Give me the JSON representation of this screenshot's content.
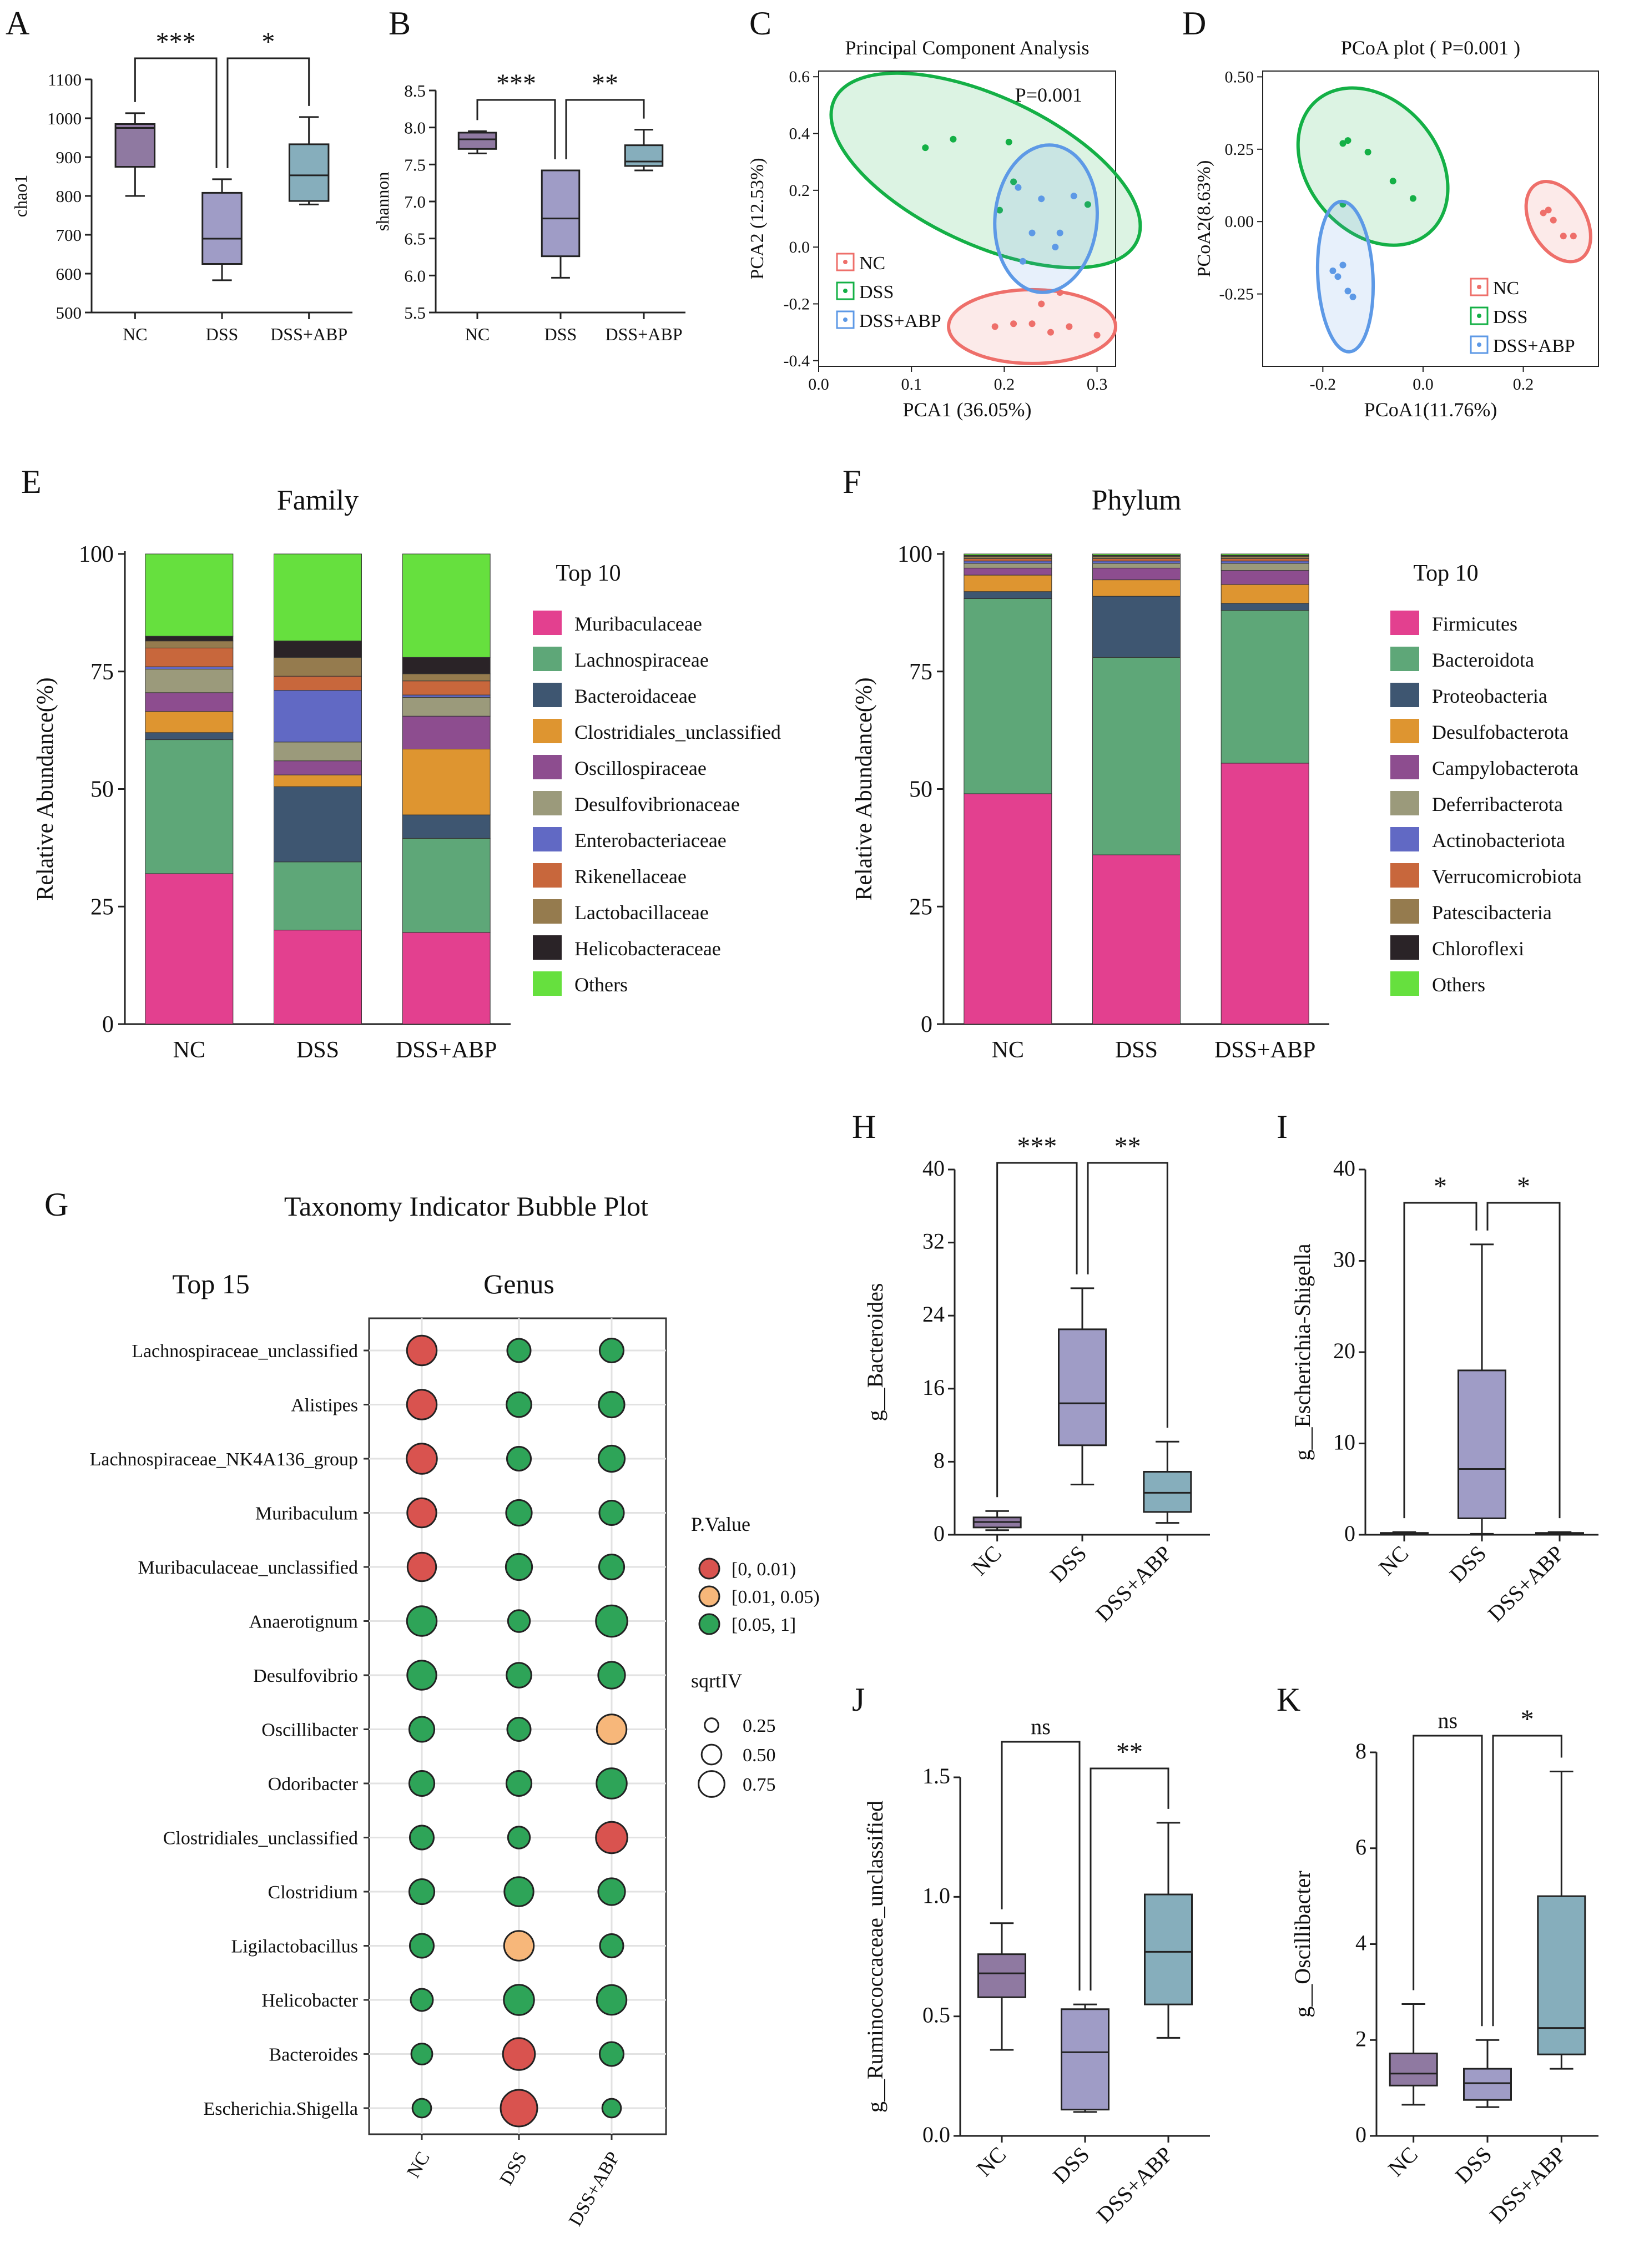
{
  "chart_data": [
    {
      "panel": "A",
      "type": "box",
      "ylabel": "chao1",
      "ylim": [
        500,
        1100
      ],
      "yticks": [
        500,
        600,
        700,
        800,
        900,
        1000,
        1100
      ],
      "categories": [
        "NC",
        "DSS",
        "DSS+ABP"
      ],
      "boxes": [
        {
          "min": 800,
          "q1": 875,
          "median": 975,
          "q3": 985,
          "max": 1013
        },
        {
          "min": 583,
          "q1": 625,
          "median": 690,
          "q3": 808,
          "max": 843
        },
        {
          "min": 778,
          "q1": 787,
          "median": 853,
          "q3": 933,
          "max": 1003
        }
      ],
      "colors": [
        "#8f79a1",
        "#9f9cc6",
        "#86aebc"
      ],
      "significance": [
        {
          "from": 0,
          "to": 1,
          "label": "***"
        },
        {
          "from": 1,
          "to": 2,
          "label": "*"
        }
      ]
    },
    {
      "panel": "B",
      "type": "box",
      "ylabel": "shannon",
      "ylim": [
        5.5,
        8.5
      ],
      "yticks": [
        5.5,
        6.0,
        6.5,
        7.0,
        7.5,
        8.0,
        8.5
      ],
      "categories": [
        "NC",
        "DSS",
        "DSS+ABP"
      ],
      "boxes": [
        {
          "min": 7.65,
          "q1": 7.71,
          "median": 7.84,
          "q3": 7.93,
          "max": 7.95
        },
        {
          "min": 5.97,
          "q1": 6.26,
          "median": 6.77,
          "q3": 7.42,
          "max": 7.42
        },
        {
          "min": 7.42,
          "q1": 7.48,
          "median": 7.54,
          "q3": 7.76,
          "max": 7.97
        }
      ],
      "colors": [
        "#8f79a1",
        "#9f9cc6",
        "#86aebc"
      ],
      "significance": [
        {
          "from": 0,
          "to": 1,
          "label": "***"
        },
        {
          "from": 1,
          "to": 2,
          "label": "**"
        }
      ]
    },
    {
      "panel": "C",
      "type": "scatter",
      "title": "Principal Component Analysis",
      "annotation": "P=0.001",
      "xlabel": "PCA1 (36.05%)",
      "ylabel": "PCA2 (12.53%)",
      "xlim": [
        0,
        0.32
      ],
      "ylim": [
        -0.42,
        0.62
      ],
      "xticks": [
        0.0,
        0.1,
        0.2,
        0.3
      ],
      "yticks": [
        -0.4,
        -0.2,
        0.0,
        0.2,
        0.4,
        0.6
      ],
      "series": [
        {
          "name": "NC",
          "color": "#ee6f6a",
          "points": [
            [
              0.19,
              -0.28
            ],
            [
              0.21,
              -0.27
            ],
            [
              0.23,
              -0.27
            ],
            [
              0.25,
              -0.3
            ],
            [
              0.27,
              -0.28
            ],
            [
              0.3,
              -0.31
            ],
            [
              0.26,
              -0.16
            ],
            [
              0.24,
              -0.2
            ]
          ],
          "ellipse": {
            "cx": 0.23,
            "cy": -0.28,
            "rx": 0.09,
            "ry": 0.13,
            "angle": 0
          }
        },
        {
          "name": "DSS",
          "color": "#14b046",
          "points": [
            [
              0.115,
              0.35
            ],
            [
              0.145,
              0.38
            ],
            [
              0.205,
              0.37
            ],
            [
              0.21,
              0.23
            ],
            [
              0.195,
              0.13
            ],
            [
              0.29,
              0.15
            ]
          ],
          "ellipse": {
            "cx": 0.18,
            "cy": 0.27,
            "rx": 0.18,
            "ry": 0.26,
            "angle": 25
          }
        },
        {
          "name": "DSS+ABP",
          "color": "#5d99e6",
          "points": [
            [
              0.215,
              0.21
            ],
            [
              0.24,
              0.17
            ],
            [
              0.275,
              0.18
            ],
            [
              0.26,
              0.05
            ],
            [
              0.23,
              0.05
            ],
            [
              0.22,
              -0.05
            ],
            [
              0.255,
              0.0
            ]
          ],
          "ellipse": {
            "cx": 0.245,
            "cy": 0.1,
            "rx": 0.055,
            "ry": 0.26,
            "angle": 5
          }
        }
      ]
    },
    {
      "panel": "D",
      "type": "scatter",
      "title": "PCoA plot ( P=0.001 )",
      "xlabel": "PCoA1(11.76%)",
      "ylabel": "PCoA2(8.63%)",
      "xlim": [
        -0.32,
        0.35
      ],
      "ylim": [
        -0.5,
        0.52
      ],
      "xticks": [
        -0.2,
        0.0,
        0.2
      ],
      "yticks": [
        -0.25,
        0.0,
        0.25,
        0.5
      ],
      "series": [
        {
          "name": "NC",
          "color": "#ee6f6a",
          "points": [
            [
              0.24,
              0.03
            ],
            [
              0.25,
              0.04
            ],
            [
              0.26,
              0.005
            ],
            [
              0.28,
              -0.05
            ],
            [
              0.3,
              -0.05
            ]
          ],
          "ellipse": {
            "cx": 0.27,
            "cy": 0.0,
            "rx": 0.055,
            "ry": 0.15,
            "angle": -30
          }
        },
        {
          "name": "DSS",
          "color": "#14b046",
          "points": [
            [
              -0.16,
              0.27
            ],
            [
              -0.15,
              0.28
            ],
            [
              -0.11,
              0.24
            ],
            [
              -0.06,
              0.14
            ],
            [
              -0.02,
              0.08
            ],
            [
              -0.16,
              0.06
            ]
          ],
          "ellipse": {
            "cx": -0.1,
            "cy": 0.19,
            "rx": 0.13,
            "ry": 0.3,
            "angle": -40
          }
        },
        {
          "name": "DSS+ABP",
          "color": "#5d99e6",
          "points": [
            [
              -0.18,
              -0.17
            ],
            [
              -0.16,
              -0.15
            ],
            [
              -0.17,
              -0.19
            ],
            [
              -0.15,
              -0.24
            ],
            [
              -0.14,
              -0.26
            ]
          ],
          "ellipse": {
            "cx": -0.155,
            "cy": -0.19,
            "rx": 0.055,
            "ry": 0.26,
            "angle": -3
          }
        }
      ]
    },
    {
      "panel": "E",
      "type": "stacked_bar",
      "title": "Family",
      "legend_title": "Top 10",
      "ylabel": "Relative Abundance(%)",
      "ylim": [
        0,
        100
      ],
      "yticks": [
        0,
        25,
        50,
        75,
        100
      ],
      "categories": [
        "NC",
        "DSS",
        "DSS+ABP"
      ],
      "series": [
        {
          "name": "Muribaculaceae",
          "color": "#e3408f",
          "values": [
            32,
            20,
            19.5
          ]
        },
        {
          "name": "Lachnospiraceae",
          "color": "#5ea778",
          "values": [
            28.5,
            14.5,
            20
          ]
        },
        {
          "name": "Bacteroidaceae",
          "color": "#3e5671",
          "values": [
            1.5,
            16,
            5
          ]
        },
        {
          "name": "Clostridiales_unclassified",
          "color": "#de9530",
          "values": [
            4.5,
            2.5,
            14
          ]
        },
        {
          "name": "Oscillospiraceae",
          "color": "#8d4d8f",
          "values": [
            4,
            3,
            7
          ]
        },
        {
          "name": "Desulfovibrionaceae",
          "color": "#9b9a7b",
          "values": [
            5,
            4,
            4
          ]
        },
        {
          "name": "Enterobacteriaceae",
          "color": "#6169c4",
          "values": [
            0.5,
            11,
            0.5
          ]
        },
        {
          "name": "Rikenellaceae",
          "color": "#c8673c",
          "values": [
            4,
            3,
            3
          ]
        },
        {
          "name": "Lactobacillaceae",
          "color": "#957b4e",
          "values": [
            1.5,
            4,
            1.5
          ]
        },
        {
          "name": "Helicobacteraceae",
          "color": "#2a2327",
          "values": [
            1,
            3.5,
            3.5
          ]
        },
        {
          "name": "Others",
          "color": "#66e03e",
          "values": [
            17.5,
            18.5,
            22
          ]
        }
      ]
    },
    {
      "panel": "F",
      "type": "stacked_bar",
      "title": "Phylum",
      "legend_title": "Top 10",
      "ylabel": "Relative Abundance(%)",
      "ylim": [
        0,
        100
      ],
      "yticks": [
        0,
        25,
        50,
        75,
        100
      ],
      "categories": [
        "NC",
        "DSS",
        "DSS+ABP"
      ],
      "series": [
        {
          "name": "Firmicutes",
          "color": "#e3408f",
          "values": [
            49,
            36,
            55.5
          ]
        },
        {
          "name": "Bacteroidota",
          "color": "#5ea778",
          "values": [
            41.5,
            42,
            32.5
          ]
        },
        {
          "name": "Proteobacteria",
          "color": "#3e5671",
          "values": [
            1.5,
            13,
            1.5
          ]
        },
        {
          "name": "Desulfobacterota",
          "color": "#de9530",
          "values": [
            3.5,
            3.5,
            4
          ]
        },
        {
          "name": "Campylobacterota",
          "color": "#8d4d8f",
          "values": [
            1.5,
            2.5,
            3
          ]
        },
        {
          "name": "Deferribacterota",
          "color": "#9b9a7b",
          "values": [
            1,
            1,
            1.5
          ]
        },
        {
          "name": "Actinobacteriota",
          "color": "#6169c4",
          "values": [
            0.5,
            0.5,
            0.5
          ]
        },
        {
          "name": "Verrucomicrobiota",
          "color": "#c8673c",
          "values": [
            0.5,
            0.5,
            0.5
          ]
        },
        {
          "name": "Patescibacteria",
          "color": "#957b4e",
          "values": [
            0.5,
            0.5,
            0.5
          ]
        },
        {
          "name": "Chloroflexi",
          "color": "#2a2327",
          "values": [
            0.2,
            0.2,
            0.2
          ]
        },
        {
          "name": "Others",
          "color": "#66e03e",
          "values": [
            0.3,
            0.3,
            0.3
          ]
        }
      ]
    },
    {
      "panel": "G",
      "type": "bubble",
      "title": "Taxonomy Indicator Bubble Plot",
      "subtitle_left": "Top 15",
      "subtitle_right": "Genus",
      "columns": [
        "NC",
        "DSS",
        "DSS+ABP"
      ],
      "rows": [
        "Lachnospiraceae_unclassified",
        "Alistipes",
        "Lachnospiraceae_NK4A136_group",
        "Muribaculum",
        "Muribaculaceae_unclassified",
        "Anaerotignum",
        "Desulfovibrio",
        "Oscillibacter",
        "Odoribacter",
        "Clostridiales_unclassified",
        "Clostridium",
        "Ligilactobacillus",
        "Helicobacter",
        "Bacteroides",
        "Escherichia.Shigella"
      ],
      "pvalue_class": [
        [
          0,
          2,
          2
        ],
        [
          0,
          2,
          2
        ],
        [
          0,
          2,
          2
        ],
        [
          0,
          2,
          2
        ],
        [
          0,
          2,
          2
        ],
        [
          2,
          2,
          2
        ],
        [
          2,
          2,
          2
        ],
        [
          2,
          2,
          1
        ],
        [
          2,
          2,
          2
        ],
        [
          2,
          2,
          0
        ],
        [
          2,
          2,
          2
        ],
        [
          2,
          1,
          2
        ],
        [
          2,
          2,
          2
        ],
        [
          2,
          0,
          2
        ],
        [
          2,
          0,
          2
        ]
      ],
      "sqrtIV": [
        [
          0.72,
          0.5,
          0.52
        ],
        [
          0.72,
          0.55,
          0.58
        ],
        [
          0.74,
          0.52,
          0.6
        ],
        [
          0.7,
          0.58,
          0.54
        ],
        [
          0.68,
          0.6,
          0.56
        ],
        [
          0.72,
          0.45,
          0.78
        ],
        [
          0.7,
          0.55,
          0.62
        ],
        [
          0.56,
          0.5,
          0.72
        ],
        [
          0.56,
          0.56,
          0.74
        ],
        [
          0.52,
          0.45,
          0.78
        ],
        [
          0.56,
          0.7,
          0.62
        ],
        [
          0.52,
          0.72,
          0.5
        ],
        [
          0.46,
          0.74,
          0.72
        ],
        [
          0.42,
          0.8,
          0.52
        ],
        [
          0.34,
          0.96,
          0.34
        ]
      ],
      "legend": {
        "pvalue_title": "P.Value",
        "pvalue_labels": [
          "[0, 0.01)",
          "[0.01, 0.05)",
          "[0.05, 1]"
        ],
        "pvalue_colors": [
          "#d9534f",
          "#f7b77a",
          "#2ea458"
        ],
        "size_title": "sqrtIV",
        "size_labels": [
          "0.25",
          "0.50",
          "0.75"
        ],
        "size_values": [
          0.25,
          0.5,
          0.75
        ]
      }
    },
    {
      "panel": "H",
      "type": "box",
      "ylabel": "g__Bacteroides",
      "ylim": [
        0,
        40
      ],
      "yticks": [
        0,
        8,
        16,
        24,
        32,
        40
      ],
      "categories": [
        "NC",
        "DSS",
        "DSS+ABP"
      ],
      "boxes": [
        {
          "min": 0.5,
          "q1": 0.8,
          "median": 1.4,
          "q3": 1.9,
          "max": 2.6
        },
        {
          "min": 5.5,
          "q1": 9.8,
          "median": 14.4,
          "q3": 22.5,
          "max": 27
        },
        {
          "min": 1.3,
          "q1": 2.5,
          "median": 4.6,
          "q3": 6.9,
          "max": 10.2
        }
      ],
      "colors": [
        "#8f79a1",
        "#9f9cc6",
        "#86aebc"
      ],
      "significance": [
        {
          "from": 0,
          "to": 1,
          "label": "***"
        },
        {
          "from": 1,
          "to": 2,
          "label": "**"
        }
      ]
    },
    {
      "panel": "I",
      "type": "box",
      "ylabel": "g__Escherichia-Shigella",
      "ylim": [
        0,
        40
      ],
      "yticks": [
        0,
        10,
        20,
        30,
        40
      ],
      "categories": [
        "NC",
        "DSS",
        "DSS+ABP"
      ],
      "boxes": [
        {
          "min": 0,
          "q1": 0.05,
          "median": 0.1,
          "q3": 0.2,
          "max": 0.3
        },
        {
          "min": 0.1,
          "q1": 1.8,
          "median": 7.2,
          "q3": 18,
          "max": 31.8
        },
        {
          "min": 0,
          "q1": 0.05,
          "median": 0.1,
          "q3": 0.2,
          "max": 0.3
        }
      ],
      "colors": [
        "#8f79a1",
        "#9f9cc6",
        "#86aebc"
      ],
      "significance": [
        {
          "from": 0,
          "to": 1,
          "label": "*"
        },
        {
          "from": 1,
          "to": 2,
          "label": "*"
        }
      ]
    },
    {
      "panel": "J",
      "type": "box",
      "ylabel": "g__Ruminococcaceae_unclassified",
      "ylim": [
        0,
        1.5
      ],
      "yticks": [
        0.0,
        0.5,
        1.0,
        1.5
      ],
      "categories": [
        "NC",
        "DSS",
        "DSS+ABP"
      ],
      "boxes": [
        {
          "min": 0.36,
          "q1": 0.58,
          "median": 0.68,
          "q3": 0.76,
          "max": 0.89
        },
        {
          "min": 0.1,
          "q1": 0.11,
          "median": 0.35,
          "q3": 0.53,
          "max": 0.55
        },
        {
          "min": 0.41,
          "q1": 0.55,
          "median": 0.77,
          "q3": 1.01,
          "max": 1.31
        }
      ],
      "colors": [
        "#8f79a1",
        "#9f9cc6",
        "#86aebc"
      ],
      "significance": [
        {
          "from": 0,
          "to": 1,
          "label": "ns"
        },
        {
          "from": 1,
          "to": 2,
          "label": "**"
        }
      ]
    },
    {
      "panel": "K",
      "type": "box",
      "ylabel": "g__Oscillibacter",
      "ylim": [
        0,
        8
      ],
      "yticks": [
        0,
        2,
        4,
        6,
        8
      ],
      "categories": [
        "NC",
        "DSS",
        "DSS+ABP"
      ],
      "boxes": [
        {
          "min": 0.65,
          "q1": 1.05,
          "median": 1.3,
          "q3": 1.72,
          "max": 2.75
        },
        {
          "min": 0.6,
          "q1": 0.75,
          "median": 1.1,
          "q3": 1.4,
          "max": 2.0
        },
        {
          "min": 1.4,
          "q1": 1.7,
          "median": 2.25,
          "q3": 5.0,
          "max": 7.6
        }
      ],
      "colors": [
        "#8f79a1",
        "#9f9cc6",
        "#86aebc"
      ],
      "significance": [
        {
          "from": 0,
          "to": 1,
          "label": "ns"
        },
        {
          "from": 1,
          "to": 2,
          "label": "*"
        }
      ]
    }
  ]
}
